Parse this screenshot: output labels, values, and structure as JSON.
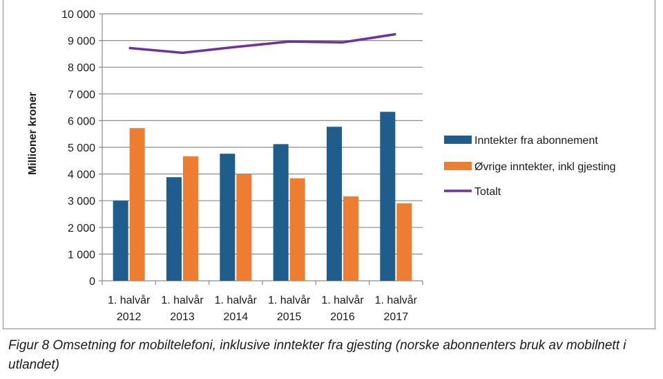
{
  "chart_data": {
    "type": "bar",
    "ylabel": "Millioner kroner",
    "ylim": [
      0,
      10000
    ],
    "yticks": [
      0,
      1000,
      2000,
      3000,
      4000,
      5000,
      6000,
      7000,
      8000,
      9000,
      10000
    ],
    "ytick_labels": [
      "0",
      "1 000",
      "2 000",
      "3 000",
      "4 000",
      "5 000",
      "6 000",
      "7 000",
      "8 000",
      "9 000",
      "10 000"
    ],
    "categories": [
      [
        "1. halvår",
        "2012"
      ],
      [
        "1. halvår",
        "2013"
      ],
      [
        "1. halvår",
        "2014"
      ],
      [
        "1. halvår",
        "2015"
      ],
      [
        "1. halvår",
        "2016"
      ],
      [
        "1. halvår",
        "2017"
      ]
    ],
    "grid": "horizontal",
    "legend_position": "right",
    "series": [
      {
        "name": "Inntekter fra abonnement",
        "kind": "bar",
        "color": "#1f5d8c",
        "values": [
          3000,
          3880,
          4760,
          5120,
          5770,
          6330
        ]
      },
      {
        "name": "Øvrige inntekter, inkl gjesting",
        "kind": "bar",
        "color": "#ed7d31",
        "values": [
          5720,
          4660,
          4000,
          3840,
          3160,
          2900
        ]
      },
      {
        "name": "Totalt",
        "kind": "line",
        "color": "#7030a0",
        "values": [
          8720,
          8540,
          8760,
          8960,
          8930,
          9240
        ]
      }
    ]
  },
  "caption": "Figur 8 Omsetning for mobiltelefoni, inklusive inntekter fra gjesting (norske abonnenters bruk av mobilnett i utlandet)"
}
